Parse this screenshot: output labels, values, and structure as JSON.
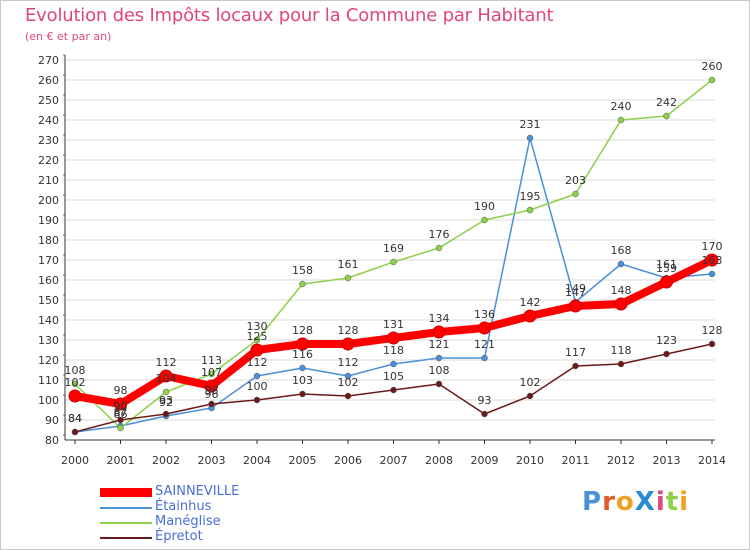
{
  "title": "Evolution des Impôts locaux pour la Commune par Habitant",
  "subtitle": "(en € et par an)",
  "logo_text": "ProXiti",
  "colors": {
    "title": "#e0457b",
    "grid": "#d9d9d9",
    "axis": "#333333",
    "legend_text": "#4a6fd6"
  },
  "chart_data": {
    "type": "line",
    "x": [
      "2000",
      "2001",
      "2002",
      "2003",
      "2004",
      "2005",
      "2006",
      "2007",
      "2008",
      "2009",
      "2010",
      "2011",
      "2012",
      "2013",
      "2014"
    ],
    "ylim": [
      80,
      270
    ],
    "y_ticks": [
      80,
      90,
      100,
      110,
      120,
      130,
      140,
      150,
      160,
      170,
      180,
      190,
      200,
      210,
      220,
      230,
      240,
      250,
      260,
      270
    ],
    "grid": true,
    "legend_position": "bottom-left",
    "series": [
      {
        "name": "SAINNEVILLE",
        "color": "#ff0000",
        "values": [
          102,
          98,
          112,
          107,
          125,
          128,
          128,
          131,
          134,
          136,
          142,
          147,
          148,
          159,
          170
        ]
      },
      {
        "name": "Étainhus",
        "color": "#4a90d9",
        "values": [
          84,
          87,
          92,
          96,
          112,
          116,
          112,
          118,
          121,
          121,
          231,
          149,
          168,
          161,
          163
        ]
      },
      {
        "name": "Manéglise",
        "color": "#8ed04a",
        "values": [
          108,
          86,
          104,
          113,
          130,
          158,
          161,
          169,
          176,
          190,
          195,
          203,
          240,
          242,
          260
        ]
      },
      {
        "name": "Épretot",
        "color": "#6b1a1a",
        "values": [
          84,
          90,
          93,
          98,
          100,
          103,
          102,
          105,
          108,
          93,
          102,
          117,
          118,
          123,
          128
        ]
      }
    ]
  }
}
